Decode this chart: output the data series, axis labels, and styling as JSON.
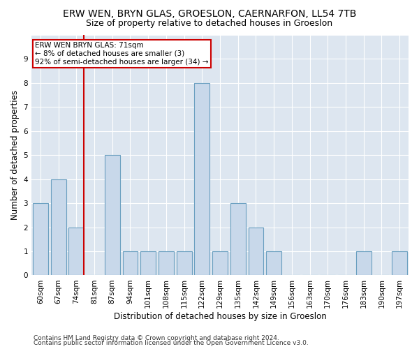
{
  "title": "ERW WEN, BRYN GLAS, GROESLON, CAERNARFON, LL54 7TB",
  "subtitle": "Size of property relative to detached houses in Groeslon",
  "xlabel": "Distribution of detached houses by size in Groeslon",
  "ylabel": "Number of detached properties",
  "footer1": "Contains HM Land Registry data © Crown copyright and database right 2024.",
  "footer2": "Contains public sector information licensed under the Open Government Licence v3.0.",
  "categories": [
    "60sqm",
    "67sqm",
    "74sqm",
    "81sqm",
    "87sqm",
    "94sqm",
    "101sqm",
    "108sqm",
    "115sqm",
    "122sqm",
    "129sqm",
    "135sqm",
    "142sqm",
    "149sqm",
    "156sqm",
    "163sqm",
    "170sqm",
    "176sqm",
    "183sqm",
    "190sqm",
    "197sqm"
  ],
  "values": [
    3,
    4,
    2,
    0,
    5,
    1,
    1,
    1,
    1,
    8,
    1,
    3,
    2,
    1,
    0,
    0,
    0,
    0,
    1,
    0,
    1
  ],
  "bar_color": "#c8d8ea",
  "bar_edge_color": "#6a9fc0",
  "red_line_bar_index": 2,
  "annotation_line1": "ERW WEN BRYN GLAS: 71sqm",
  "annotation_line2": "← 8% of detached houses are smaller (3)",
  "annotation_line3": "92% of semi-detached houses are larger (34) →",
  "annotation_box_color": "#ffffff",
  "annotation_box_edge_color": "#cc0000",
  "red_line_color": "#cc0000",
  "ylim": [
    0,
    10
  ],
  "yticks": [
    0,
    1,
    2,
    3,
    4,
    5,
    6,
    7,
    8,
    9,
    10
  ],
  "background_color": "#dde6f0",
  "grid_color": "#ffffff",
  "title_fontsize": 10,
  "subtitle_fontsize": 9,
  "xlabel_fontsize": 8.5,
  "ylabel_fontsize": 8.5,
  "tick_fontsize": 7.5,
  "footer_fontsize": 6.5
}
